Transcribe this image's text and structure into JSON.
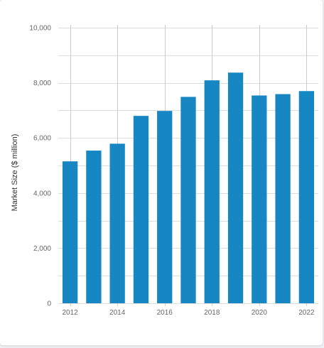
{
  "chart_data": {
    "type": "bar",
    "title": "",
    "xlabel": "",
    "ylabel": "Market Size ($ million)",
    "x": [
      2012,
      2013,
      2014,
      2015,
      2016,
      2017,
      2018,
      2019,
      2020,
      2021,
      2022
    ],
    "values": [
      5150,
      5540,
      5790,
      6800,
      6980,
      7490,
      8090,
      8370,
      7540,
      7590,
      7700
    ],
    "x_tick_labels": [
      "2012",
      "2014",
      "2016",
      "2018",
      "2020",
      "2022"
    ],
    "y_ticks": [
      0,
      2000,
      4000,
      6000,
      8000,
      10000
    ],
    "y_tick_labels": [
      "0",
      "2,000",
      "4,000",
      "6,000",
      "8,000",
      "10,000"
    ],
    "ylim": [
      0,
      10000
    ],
    "grid": true,
    "colors": {
      "bar": "#1787c3",
      "grid": "#dddddd"
    }
  }
}
